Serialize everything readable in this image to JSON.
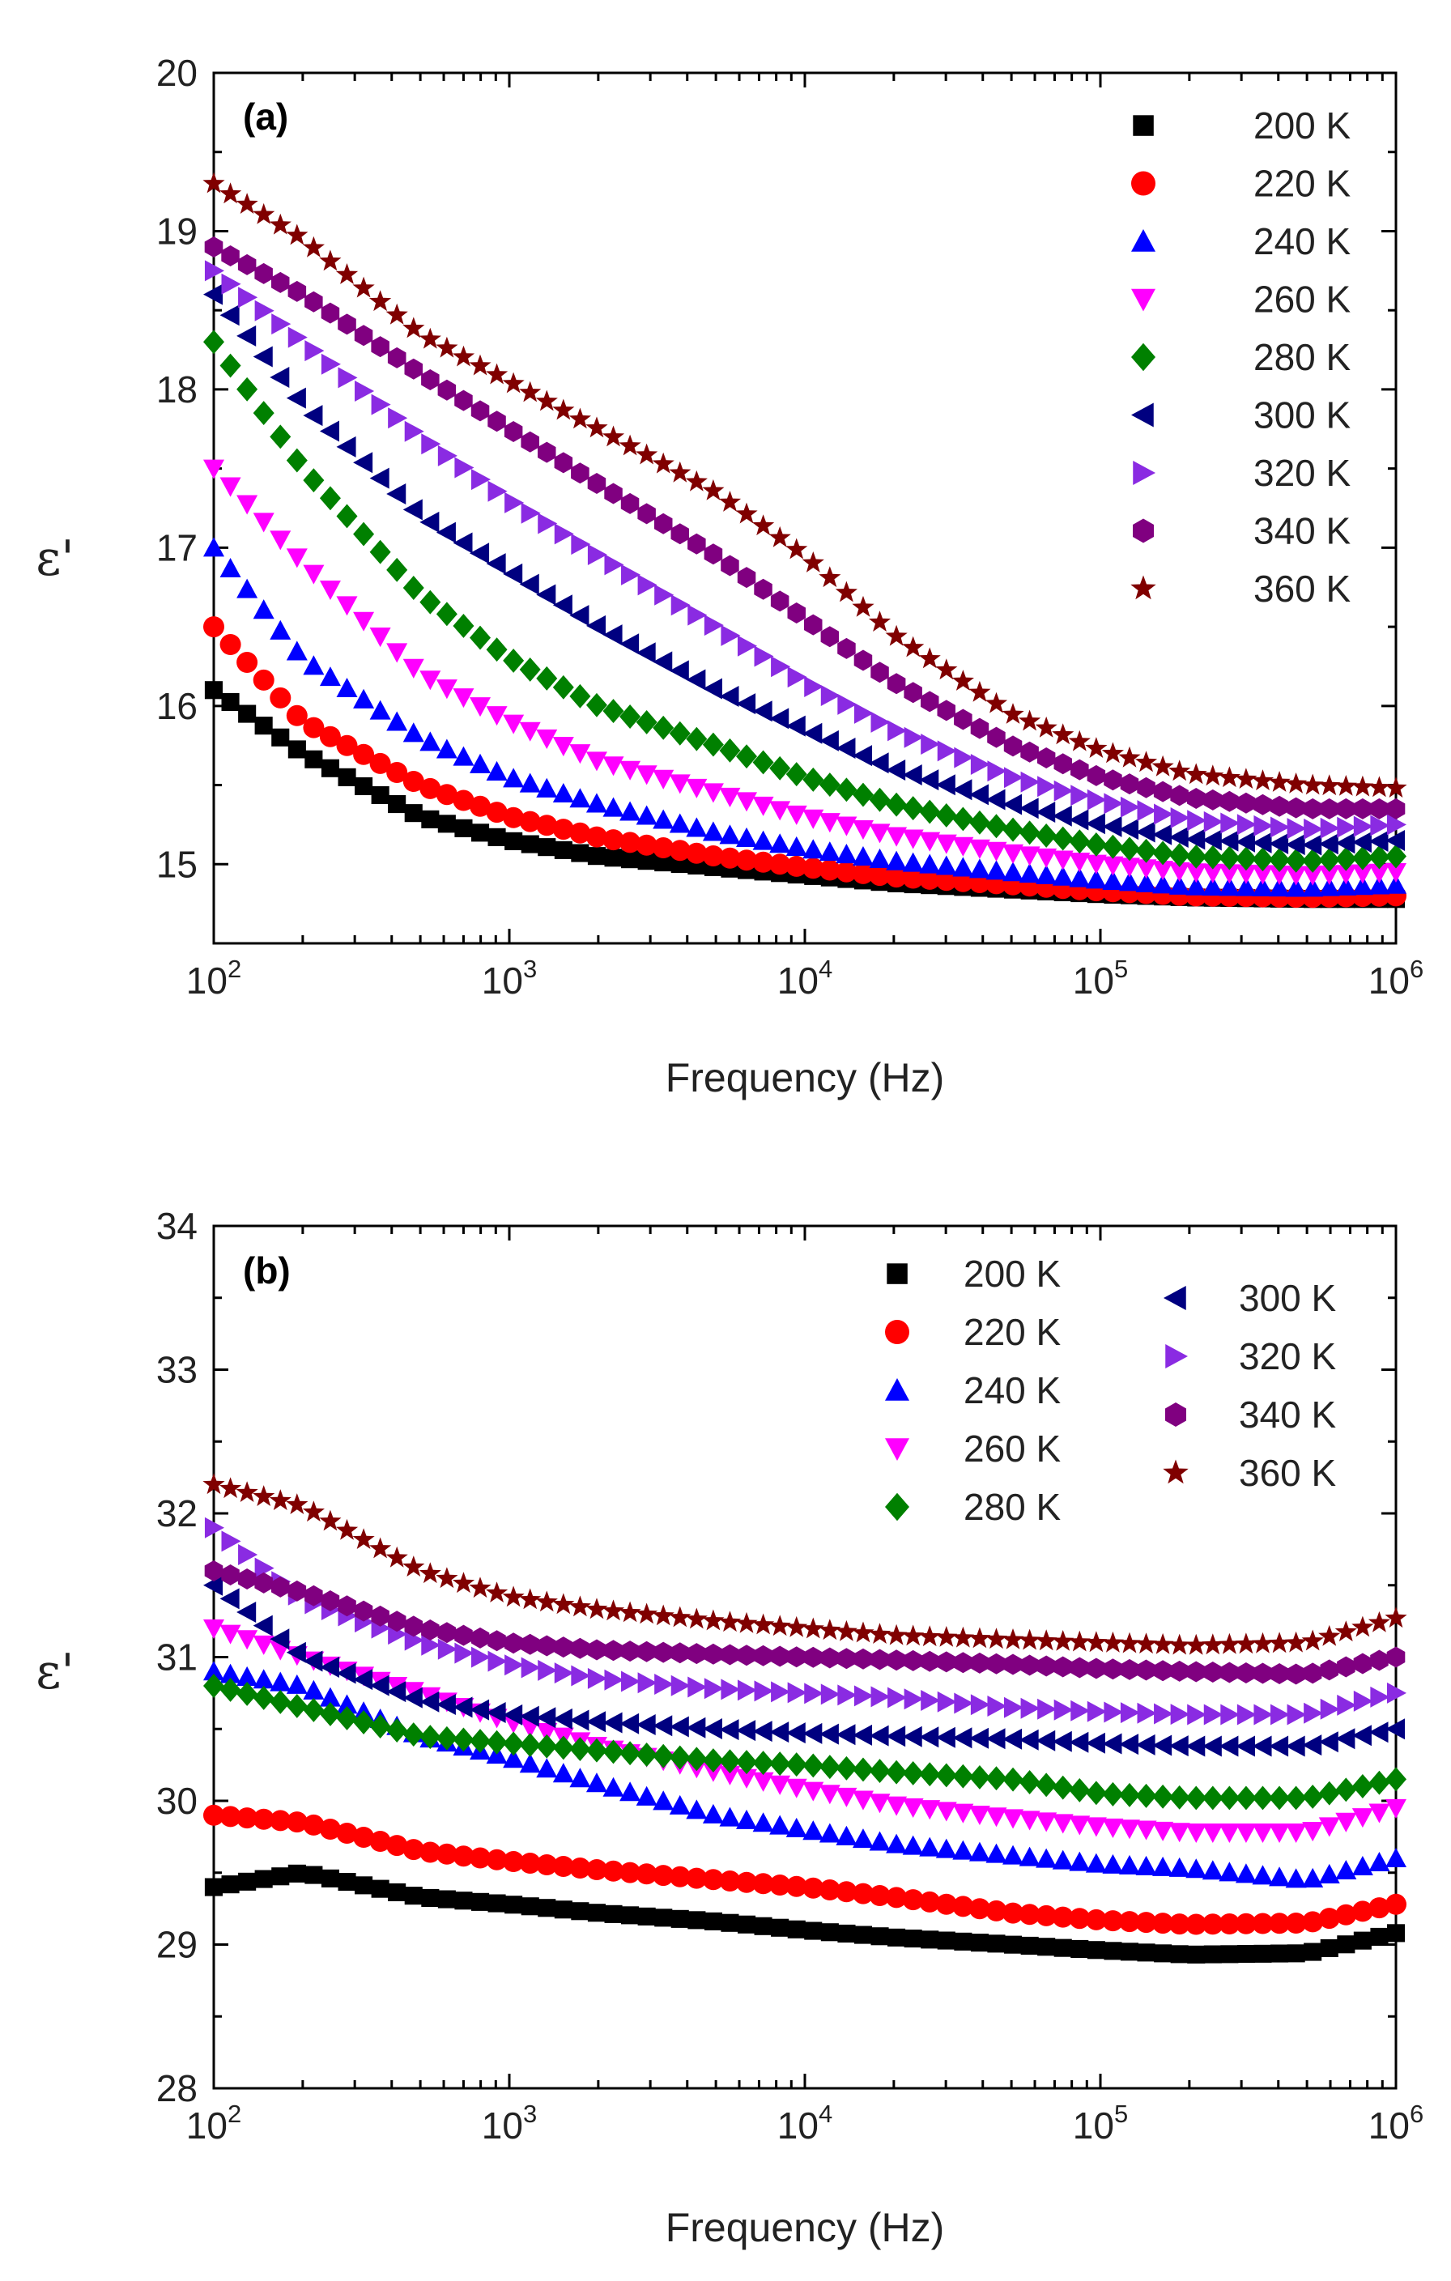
{
  "chart_data": [
    {
      "type": "scatter",
      "panel_label": "(a)",
      "xlabel": "Frequency (Hz)",
      "ylabel": "ε'",
      "x_scale": "log",
      "xlim": [
        100,
        1000000
      ],
      "ylim": [
        14.5,
        20
      ],
      "yticks": [
        15,
        16,
        17,
        18,
        19,
        20
      ],
      "xtick_exponents": [
        "2",
        "3",
        "4",
        "5",
        "6"
      ],
      "legend_position": "top-right",
      "x_points": [
        100,
        200,
        500,
        1000,
        2000,
        5000,
        10000,
        20000,
        50000,
        100000,
        200000,
        500000,
        1000000
      ],
      "series": [
        {
          "name": "200 K",
          "marker": "square",
          "color": "#000000",
          "values": [
            16.1,
            15.7,
            15.3,
            15.15,
            15.05,
            14.98,
            14.93,
            14.88,
            14.84,
            14.81,
            14.79,
            14.78,
            14.78
          ]
        },
        {
          "name": "220 K",
          "marker": "circle",
          "color": "#ff0000",
          "values": [
            16.5,
            15.9,
            15.5,
            15.3,
            15.17,
            15.05,
            14.98,
            14.92,
            14.87,
            14.83,
            14.8,
            14.79,
            14.8
          ]
        },
        {
          "name": "240 K",
          "marker": "triangle-up",
          "color": "#0000ff",
          "values": [
            17.0,
            16.3,
            15.8,
            15.55,
            15.38,
            15.2,
            15.1,
            15.02,
            14.95,
            14.9,
            14.86,
            14.85,
            14.87
          ]
        },
        {
          "name": "260 K",
          "marker": "triangle-down",
          "color": "#ff00ff",
          "values": [
            17.5,
            16.9,
            16.2,
            15.9,
            15.65,
            15.45,
            15.3,
            15.18,
            15.07,
            15.0,
            14.95,
            14.93,
            14.95
          ]
        },
        {
          "name": "280 K",
          "marker": "diamond",
          "color": "#008000",
          "values": [
            18.3,
            17.5,
            16.7,
            16.3,
            16.0,
            15.75,
            15.55,
            15.38,
            15.22,
            15.12,
            15.05,
            15.02,
            15.05
          ]
        },
        {
          "name": "300 K",
          "marker": "triangle-left",
          "color": "#000080",
          "values": [
            18.6,
            17.9,
            17.2,
            16.85,
            16.5,
            16.1,
            15.85,
            15.6,
            15.38,
            15.25,
            15.16,
            15.12,
            15.15
          ]
        },
        {
          "name": "320 K",
          "marker": "triangle-right",
          "color": "#8a2be2",
          "values": [
            18.75,
            18.3,
            17.7,
            17.3,
            16.95,
            16.5,
            16.15,
            15.85,
            15.55,
            15.4,
            15.28,
            15.22,
            15.25
          ]
        },
        {
          "name": "340 K",
          "marker": "hexagon",
          "color": "#800080",
          "values": [
            18.9,
            18.6,
            18.1,
            17.75,
            17.4,
            16.95,
            16.55,
            16.15,
            15.75,
            15.55,
            15.42,
            15.35,
            15.35
          ]
        },
        {
          "name": "360 K",
          "marker": "star",
          "color": "#800000",
          "values": [
            19.3,
            18.95,
            18.35,
            18.05,
            17.75,
            17.35,
            16.95,
            16.45,
            15.95,
            15.72,
            15.57,
            15.5,
            15.48
          ]
        }
      ]
    },
    {
      "type": "scatter",
      "panel_label": "(b)",
      "xlabel": "Frequency (Hz)",
      "ylabel": "ε'",
      "x_scale": "log",
      "xlim": [
        100,
        1000000
      ],
      "ylim": [
        28,
        34
      ],
      "yticks": [
        28,
        29,
        30,
        31,
        32,
        33,
        34
      ],
      "xtick_exponents": [
        "2",
        "3",
        "4",
        "5",
        "6"
      ],
      "legend_position": "top-right",
      "x_points": [
        100,
        200,
        500,
        1000,
        2000,
        5000,
        10000,
        20000,
        50000,
        100000,
        200000,
        500000,
        1000000
      ],
      "series": [
        {
          "name": "200 K",
          "marker": "square",
          "color": "#000000",
          "values": [
            29.4,
            29.5,
            29.33,
            29.28,
            29.22,
            29.16,
            29.1,
            29.05,
            29.0,
            28.96,
            28.93,
            28.94,
            29.08
          ]
        },
        {
          "name": "220 K",
          "marker": "circle",
          "color": "#ff0000",
          "values": [
            29.9,
            29.85,
            29.65,
            29.58,
            29.52,
            29.45,
            29.4,
            29.33,
            29.22,
            29.17,
            29.14,
            29.15,
            29.28
          ]
        },
        {
          "name": "240 K",
          "marker": "triangle-up",
          "color": "#0000ff",
          "values": [
            30.9,
            30.8,
            30.45,
            30.3,
            30.12,
            29.9,
            29.8,
            29.7,
            29.62,
            29.56,
            29.53,
            29.45,
            29.6
          ]
        },
        {
          "name": "260 K",
          "marker": "triangle-down",
          "color": "#ff00ff",
          "values": [
            31.2,
            31.0,
            30.75,
            30.55,
            30.38,
            30.2,
            30.08,
            29.97,
            29.88,
            29.82,
            29.78,
            29.78,
            29.95
          ]
        },
        {
          "name": "280 K",
          "marker": "diamond",
          "color": "#008000",
          "values": [
            30.8,
            30.65,
            30.45,
            30.4,
            30.35,
            30.28,
            30.25,
            30.2,
            30.15,
            30.05,
            30.02,
            30.02,
            30.15
          ]
        },
        {
          "name": "300 K",
          "marker": "triangle-left",
          "color": "#000080",
          "values": [
            31.5,
            31.0,
            30.7,
            30.6,
            30.55,
            30.5,
            30.47,
            30.45,
            30.43,
            30.4,
            30.38,
            30.38,
            30.5
          ]
        },
        {
          "name": "320 K",
          "marker": "triangle-right",
          "color": "#8a2be2",
          "values": [
            31.9,
            31.4,
            31.1,
            30.95,
            30.85,
            30.78,
            30.75,
            30.72,
            30.65,
            30.62,
            30.6,
            30.6,
            30.75
          ]
        },
        {
          "name": "340 K",
          "marker": "hexagon",
          "color": "#800080",
          "values": [
            31.6,
            31.45,
            31.2,
            31.1,
            31.05,
            31.02,
            31.0,
            30.98,
            30.95,
            30.92,
            30.9,
            30.88,
            31.0
          ]
        },
        {
          "name": "360 K",
          "marker": "star",
          "color": "#800000",
          "values": [
            32.2,
            32.05,
            31.6,
            31.42,
            31.33,
            31.25,
            31.2,
            31.15,
            31.12,
            31.1,
            31.08,
            31.1,
            31.27
          ]
        }
      ]
    }
  ]
}
